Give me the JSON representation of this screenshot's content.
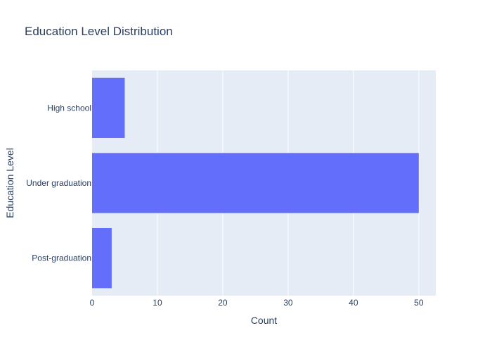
{
  "chart_data": {
    "type": "bar",
    "orientation": "horizontal",
    "title": "Education Level Distribution",
    "xlabel": "Count",
    "ylabel": "Education Level",
    "categories": [
      "High school",
      "Under graduation",
      "Post-graduation"
    ],
    "values": [
      5,
      50,
      3
    ],
    "xlim": [
      0,
      52.6
    ],
    "xticks": [
      0,
      10,
      20,
      30,
      40,
      50
    ],
    "grid": true,
    "legend": "none"
  },
  "colors": {
    "bar": "#636efa",
    "plot_background": "#e5ecf6",
    "text": "#2a3f5f",
    "grid": "#ffffff"
  }
}
